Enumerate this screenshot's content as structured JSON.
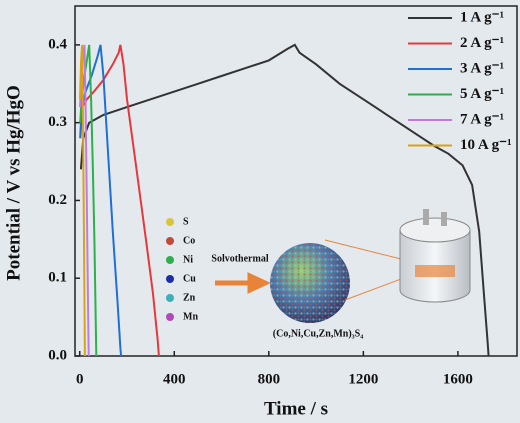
{
  "chart_data": {
    "type": "line",
    "xlabel": "Time / s",
    "ylabel": "Potential / V vs Hg/HgO",
    "xlim": [
      -20,
      1850
    ],
    "ylim": [
      0,
      0.45
    ],
    "xticks": [
      0,
      400,
      800,
      1200,
      1600
    ],
    "yticks": [
      {
        "value": 0,
        "label": "0.0"
      },
      0.1,
      0.2,
      0.3,
      0.4
    ],
    "legend": "upper right",
    "series": [
      {
        "name": "1 A g⁻¹",
        "color": "#333333",
        "x": [
          5,
          15,
          40,
          100,
          200,
          300,
          400,
          500,
          600,
          700,
          800,
          880,
          910,
          930,
          1000,
          1100,
          1200,
          1300,
          1400,
          1500,
          1560,
          1620,
          1660,
          1690,
          1710,
          1725,
          1730
        ],
        "values": [
          0.24,
          0.28,
          0.3,
          0.31,
          0.32,
          0.33,
          0.34,
          0.35,
          0.36,
          0.37,
          0.38,
          0.395,
          0.4,
          0.39,
          0.375,
          0.35,
          0.33,
          0.31,
          0.29,
          0.27,
          0.26,
          0.245,
          0.22,
          0.16,
          0.08,
          0.02,
          0
        ]
      },
      {
        "name": "2 A g⁻¹",
        "color": "#e8373a",
        "x": [
          3,
          10,
          30,
          60,
          100,
          140,
          165,
          172,
          185,
          200,
          240,
          280,
          310,
          330,
          335
        ],
        "values": [
          0.28,
          0.32,
          0.33,
          0.34,
          0.355,
          0.375,
          0.39,
          0.4,
          0.375,
          0.33,
          0.24,
          0.15,
          0.08,
          0.02,
          0
        ]
      },
      {
        "name": "3 A g⁻¹",
        "color": "#1f6fd6",
        "x": [
          2,
          8,
          25,
          50,
          75,
          88,
          100,
          120,
          140,
          160,
          172,
          175
        ],
        "values": [
          0.28,
          0.32,
          0.34,
          0.36,
          0.385,
          0.4,
          0.36,
          0.26,
          0.16,
          0.07,
          0.01,
          0
        ]
      },
      {
        "name": "5 A g⁻¹",
        "color": "#2db04b",
        "x": [
          2,
          8,
          20,
          35,
          40,
          48,
          55,
          62,
          68,
          70
        ],
        "values": [
          0.3,
          0.33,
          0.36,
          0.39,
          0.4,
          0.33,
          0.25,
          0.15,
          0.04,
          0
        ]
      },
      {
        "name": "7 A g⁻¹",
        "color": "#c07be0",
        "x": [
          1,
          8,
          15,
          20,
          25,
          30,
          35,
          38
        ],
        "values": [
          0.32,
          0.36,
          0.39,
          0.4,
          0.32,
          0.2,
          0.07,
          0
        ]
      },
      {
        "name": "10 A g⁻¹",
        "color": "#d9a21a",
        "x": [
          1,
          6,
          10,
          14,
          18,
          22
        ],
        "values": [
          0.33,
          0.38,
          0.4,
          0.3,
          0.15,
          0
        ]
      }
    ],
    "inset": {
      "elements": [
        "S",
        "Co",
        "Ni",
        "Cu",
        "Zn",
        "Mn"
      ],
      "arrow_label": "Solvothermal",
      "formula": "(Co,Ni,Cu,Zn,Mn)₃S₄"
    }
  }
}
